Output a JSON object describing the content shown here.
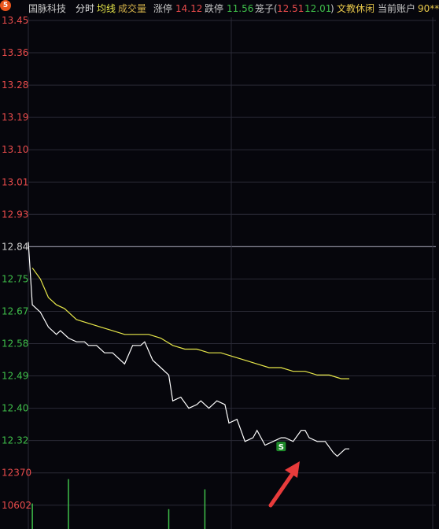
{
  "toolbar": {
    "icon_name": "badge-icon",
    "stock_name": "国脉科技",
    "tab_timeshare": "分时",
    "tab_avg": "均线",
    "tab_volume": "成交量",
    "limit_up_label": "涨停",
    "limit_up_value": "14.12",
    "limit_down_label": "跌停",
    "limit_down_value": "11.56",
    "cage_text": "笼子(",
    "cage_high": "12.51",
    "cage_low": "12.01",
    "cage_close": ")",
    "status_text": "文教休闲",
    "account_label": "当前账户",
    "account_value": "90**"
  },
  "colors": {
    "background": "#06060c",
    "up_red": "#e84b4b",
    "down_green": "#3fbf4a",
    "price_line": "#ffffff",
    "avg_line": "#e8e84a",
    "grid": "#2a2a36",
    "volume_bar": "#3fbf4a",
    "sell_marker": "#1e8a2a",
    "arrow": "#e83b3b"
  },
  "chart_data": {
    "type": "line",
    "y_tick_labels": [
      "13.45",
      "13.36",
      "13.28",
      "13.19",
      "13.10",
      "13.01",
      "12.93",
      "12.84",
      "12.75",
      "12.67",
      "12.58",
      "12.49",
      "12.40",
      "12.32"
    ],
    "bottom_labels": [
      "12370",
      "10602"
    ],
    "prev_close": 12.84,
    "ylim": [
      12.28,
      13.45
    ],
    "x_points": 81,
    "series": [
      {
        "key": "price",
        "x": [
          0,
          1,
          3,
          5,
          7,
          8,
          10,
          12,
          14,
          15,
          17,
          19,
          21,
          22,
          24,
          26,
          28,
          29,
          31,
          33,
          35,
          36,
          38,
          40,
          42,
          43,
          45,
          47,
          49,
          50,
          52,
          54,
          56,
          57,
          59,
          61,
          63,
          64,
          66,
          68,
          69,
          70,
          72,
          74,
          76,
          77,
          79,
          80
        ],
        "values": [
          12.85,
          12.68,
          12.66,
          12.62,
          12.6,
          12.61,
          12.59,
          12.58,
          12.58,
          12.57,
          12.57,
          12.55,
          12.55,
          12.54,
          12.52,
          12.57,
          12.57,
          12.58,
          12.53,
          12.51,
          12.49,
          12.42,
          12.43,
          12.4,
          12.41,
          12.42,
          12.4,
          12.42,
          12.41,
          12.36,
          12.37,
          12.31,
          12.32,
          12.34,
          12.3,
          12.31,
          12.32,
          12.32,
          12.31,
          12.34,
          12.34,
          12.32,
          12.31,
          12.31,
          12.28,
          12.27,
          12.29,
          12.29
        ]
      },
      {
        "key": "average",
        "x": [
          1,
          3,
          5,
          7,
          9,
          10,
          12,
          15,
          18,
          21,
          24,
          27,
          30,
          33,
          36,
          39,
          42,
          45,
          48,
          51,
          54,
          57,
          60,
          63,
          66,
          69,
          72,
          75,
          78,
          80
        ],
        "values": [
          12.78,
          12.75,
          12.7,
          12.68,
          12.67,
          12.66,
          12.64,
          12.63,
          12.62,
          12.61,
          12.6,
          12.6,
          12.6,
          12.59,
          12.57,
          12.56,
          12.56,
          12.55,
          12.55,
          12.54,
          12.53,
          12.52,
          12.51,
          12.51,
          12.5,
          12.5,
          12.49,
          12.49,
          12.48,
          12.48
        ]
      }
    ],
    "volume_bars": {
      "x": [
        1,
        10,
        35,
        44
      ],
      "relative_heights": [
        0.45,
        0.88,
        0.35,
        0.7
      ]
    },
    "sell_marker": {
      "label": "S",
      "x": 63,
      "value": 12.32
    },
    "grid": true
  }
}
